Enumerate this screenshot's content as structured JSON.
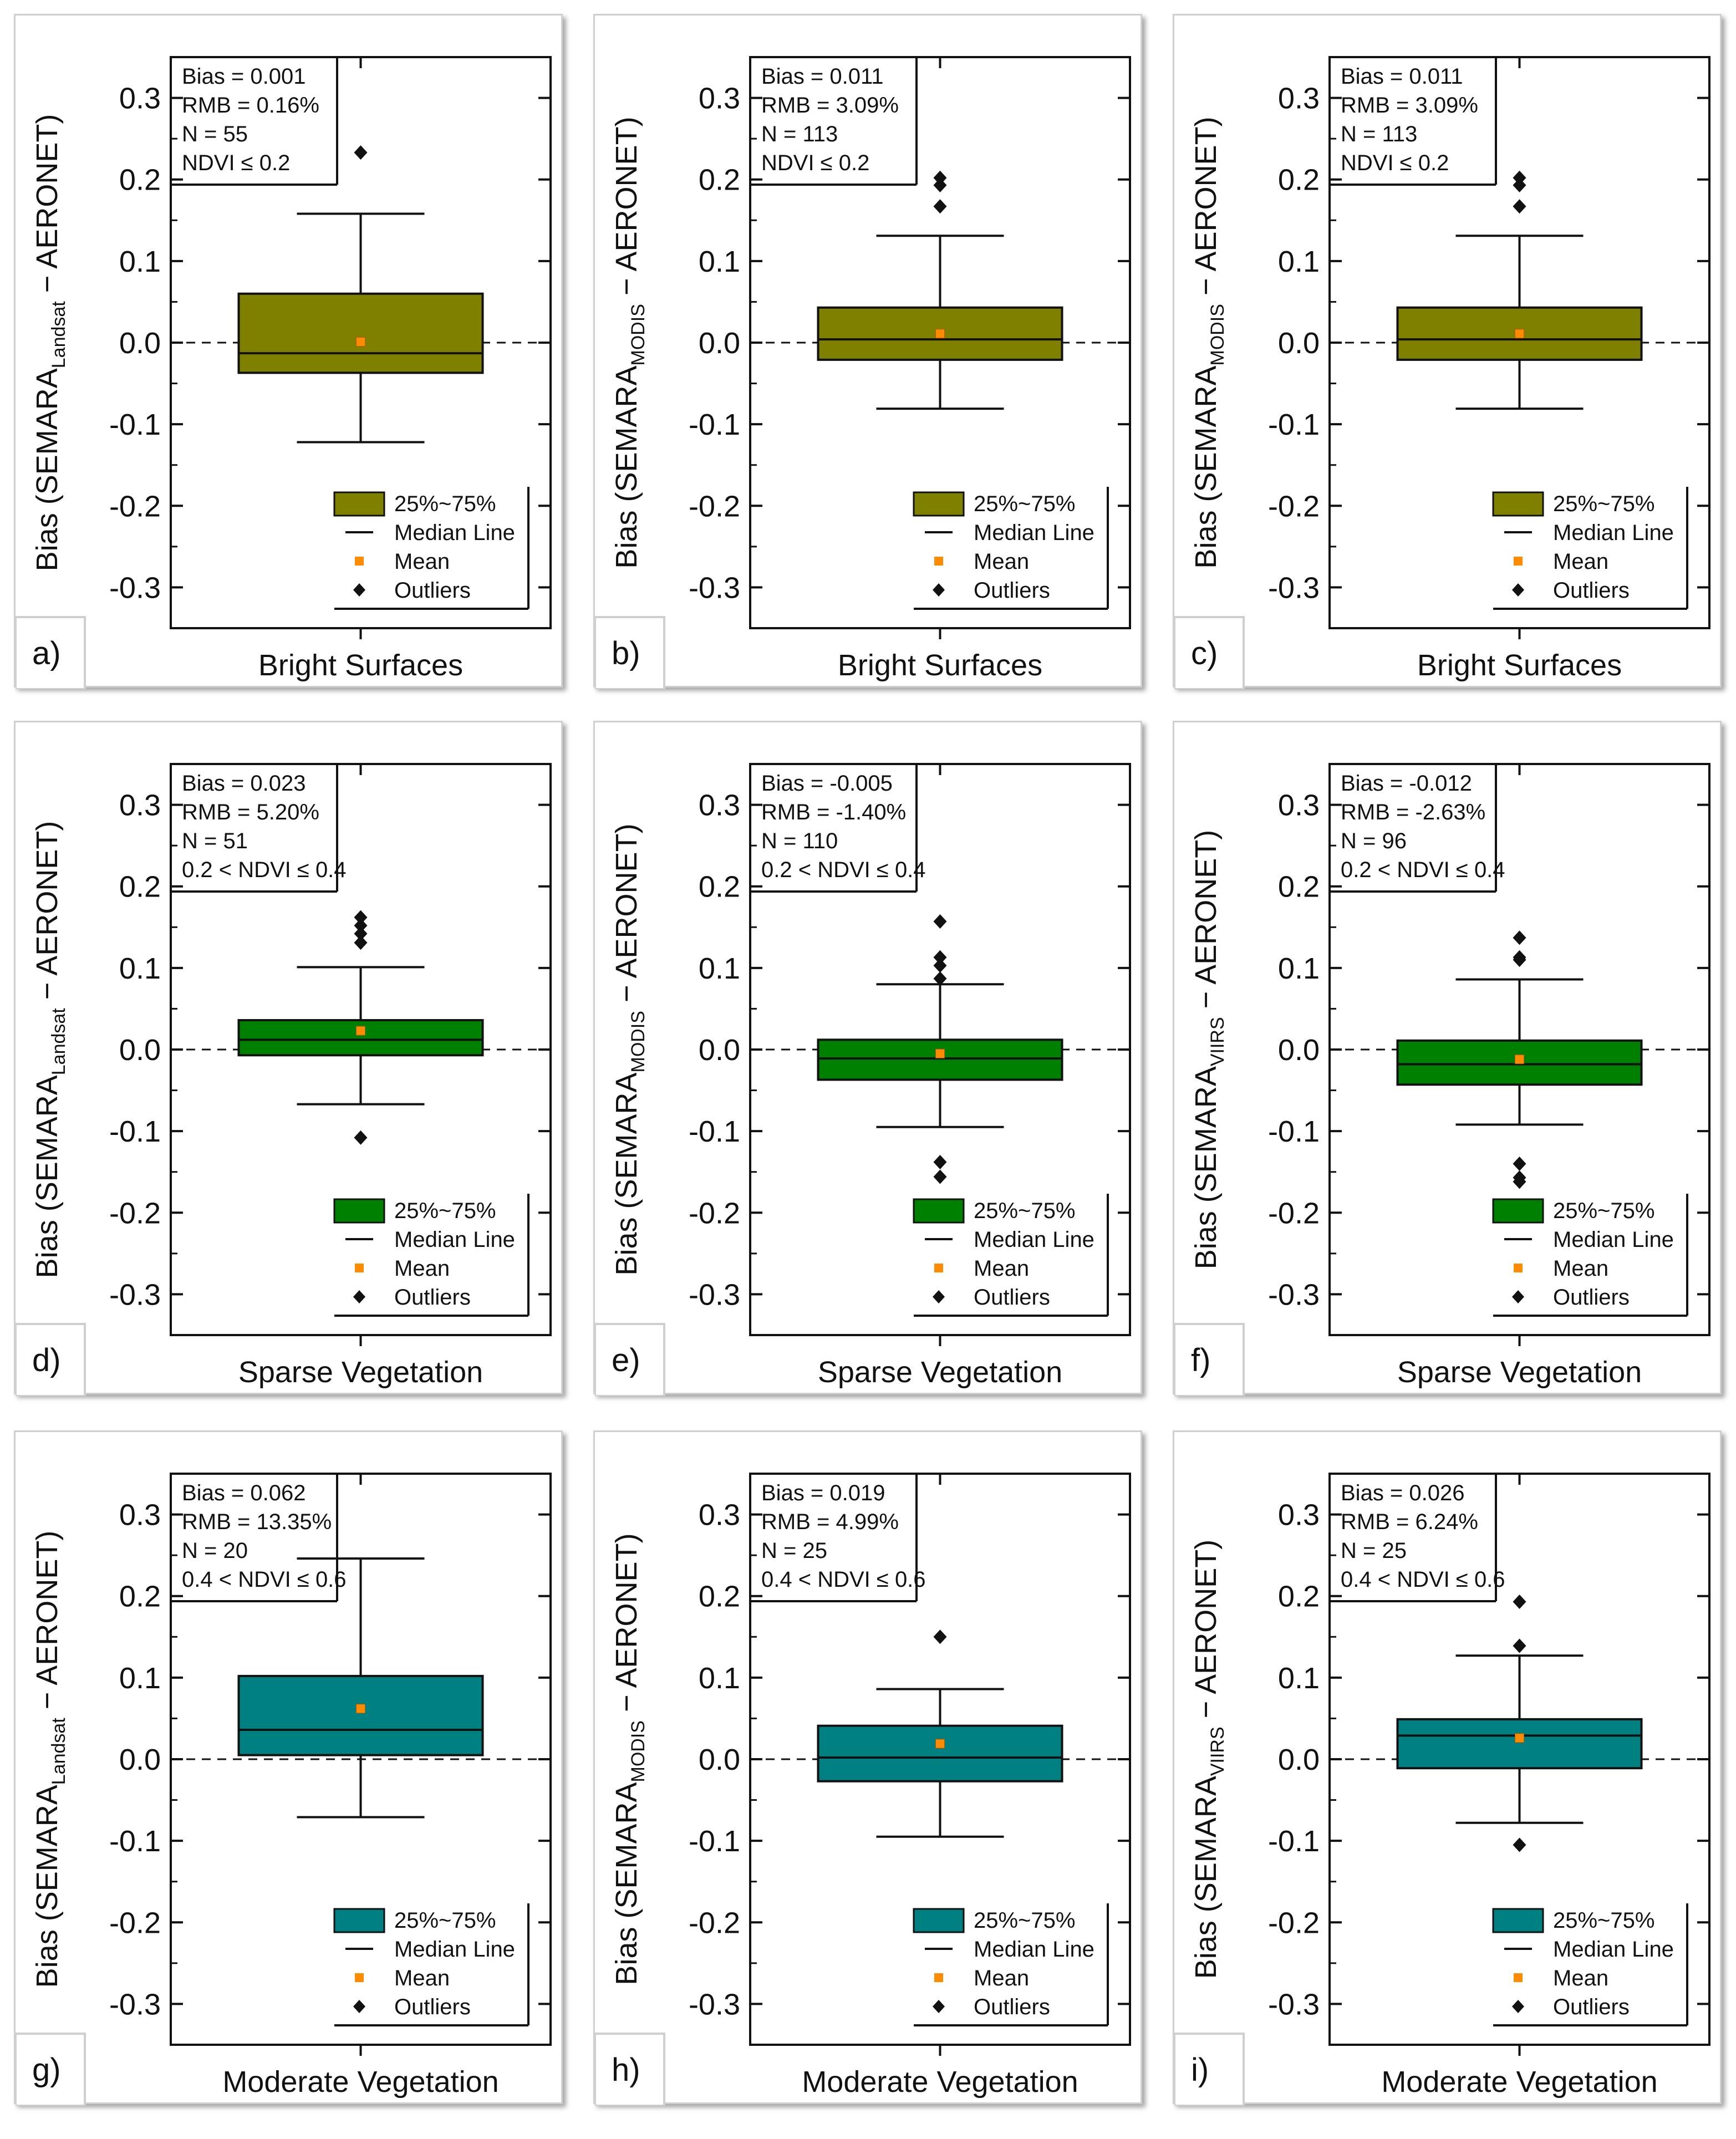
{
  "figure": {
    "legend": {
      "box_label": "25%~75%",
      "median_label": "Median Line",
      "mean_label": "Mean",
      "outlier_label": "Outliers"
    },
    "colors": {
      "bright": "#808000",
      "sparse": "#008000",
      "moderate": "#008080",
      "mean_marker": "#ff8c00",
      "axis": "#111111"
    }
  },
  "chart_data": [
    {
      "type": "box",
      "panel_label": "a)",
      "category": "Bright Surfaces",
      "ylabel_main": "Bias (SEMARA",
      "ylabel_sub": "Landsat",
      "ylabel_tail": " − AERONET)",
      "ylim": [
        -0.35,
        0.35
      ],
      "yticks": [
        "0.3",
        "0.2",
        "0.1",
        "0.0",
        "-0.1",
        "-0.2",
        "-0.3"
      ],
      "ytick_values": [
        0.3,
        0.2,
        0.1,
        0.0,
        -0.1,
        -0.2,
        -0.3
      ],
      "stats": [
        "Bias = 0.001",
        "RMB = 0.16%",
        "N = 55",
        "NDVI ≤ 0.2"
      ],
      "box": {
        "q1": -0.037,
        "median": -0.013,
        "q3": 0.06,
        "whisker_low": -0.122,
        "whisker_high": 0.158,
        "mean": 0.001
      },
      "outliers": [
        0.233
      ],
      "fill_key": "bright"
    },
    {
      "type": "box",
      "panel_label": "b)",
      "category": "Bright Surfaces",
      "ylabel_main": "Bias (SEMARA",
      "ylabel_sub": "MODIS",
      "ylabel_tail": " − AERONET)",
      "ylim": [
        -0.35,
        0.35
      ],
      "yticks": [
        "0.3",
        "0.2",
        "0.1",
        "0.0",
        "-0.1",
        "-0.2",
        "-0.3"
      ],
      "ytick_values": [
        0.3,
        0.2,
        0.1,
        0.0,
        -0.1,
        -0.2,
        -0.3
      ],
      "stats": [
        "Bias = 0.011",
        "RMB = 3.09%",
        "N = 113",
        "NDVI ≤ 0.2"
      ],
      "box": {
        "q1": -0.021,
        "median": 0.004,
        "q3": 0.043,
        "whisker_low": -0.081,
        "whisker_high": 0.131,
        "mean": 0.011
      },
      "outliers": [
        0.202,
        0.193,
        0.167
      ],
      "fill_key": "bright"
    },
    {
      "type": "box",
      "panel_label": "c)",
      "category": "Bright Surfaces",
      "ylabel_main": "Bias (SEMARA",
      "ylabel_sub": "MODIS",
      "ylabel_tail": " − AERONET)",
      "ylim": [
        -0.35,
        0.35
      ],
      "yticks": [
        "0.3",
        "0.2",
        "0.1",
        "0.0",
        "-0.1",
        "-0.2",
        "-0.3"
      ],
      "ytick_values": [
        0.3,
        0.2,
        0.1,
        0.0,
        -0.1,
        -0.2,
        -0.3
      ],
      "stats": [
        "Bias = 0.011",
        "RMB = 3.09%",
        "N = 113",
        "NDVI ≤ 0.2"
      ],
      "box": {
        "q1": -0.021,
        "median": 0.004,
        "q3": 0.043,
        "whisker_low": -0.081,
        "whisker_high": 0.131,
        "mean": 0.011
      },
      "outliers": [
        0.202,
        0.193,
        0.167
      ],
      "fill_key": "bright"
    },
    {
      "type": "box",
      "panel_label": "d)",
      "category": "Sparse Vegetation",
      "ylabel_main": "Bias (SEMARA",
      "ylabel_sub": "Landsat",
      "ylabel_tail": " − AERONET)",
      "ylim": [
        -0.35,
        0.35
      ],
      "yticks": [
        "0.3",
        "0.2",
        "0.1",
        "0.0",
        "-0.1",
        "-0.2",
        "-0.3"
      ],
      "ytick_values": [
        0.3,
        0.2,
        0.1,
        0.0,
        -0.1,
        -0.2,
        -0.3
      ],
      "stats": [
        "Bias = 0.023",
        "RMB = 5.20%",
        "N = 51",
        "0.2 < NDVI ≤ 0.4"
      ],
      "box": {
        "q1": -0.007,
        "median": 0.012,
        "q3": 0.036,
        "whisker_low": -0.067,
        "whisker_high": 0.101,
        "mean": 0.023
      },
      "outliers": [
        0.162,
        0.152,
        0.142,
        0.131,
        -0.108
      ],
      "fill_key": "sparse"
    },
    {
      "type": "box",
      "panel_label": "e)",
      "category": "Sparse Vegetation",
      "ylabel_main": "Bias (SEMARA",
      "ylabel_sub": "MODIS",
      "ylabel_tail": " − AERONET)",
      "ylim": [
        -0.35,
        0.35
      ],
      "yticks": [
        "0.3",
        "0.2",
        "0.1",
        "0.0",
        "-0.1",
        "-0.2",
        "-0.3"
      ],
      "ytick_values": [
        0.3,
        0.2,
        0.1,
        0.0,
        -0.1,
        -0.2,
        -0.3
      ],
      "stats": [
        "Bias = -0.005",
        "RMB = -1.40%",
        "N = 110",
        "0.2 < NDVI ≤ 0.4"
      ],
      "box": {
        "q1": -0.037,
        "median": -0.011,
        "q3": 0.012,
        "whisker_low": -0.095,
        "whisker_high": 0.08,
        "mean": -0.005
      },
      "outliers": [
        0.157,
        0.113,
        0.103,
        0.087,
        -0.138,
        -0.156
      ],
      "fill_key": "sparse"
    },
    {
      "type": "box",
      "panel_label": "f)",
      "category": "Sparse Vegetation",
      "ylabel_main": "Bias (SEMARA",
      "ylabel_sub": "VIIRS",
      "ylabel_tail": " − AERONET)",
      "ylim": [
        -0.35,
        0.35
      ],
      "yticks": [
        "0.3",
        "0.2",
        "0.1",
        "0.0",
        "-0.1",
        "-0.2",
        "-0.3"
      ],
      "ytick_values": [
        0.3,
        0.2,
        0.1,
        0.0,
        -0.1,
        -0.2,
        -0.3
      ],
      "stats": [
        "Bias = -0.012",
        "RMB = -2.63%",
        "N = 96",
        "0.2 < NDVI ≤ 0.4"
      ],
      "box": {
        "q1": -0.043,
        "median": -0.018,
        "q3": 0.011,
        "whisker_low": -0.092,
        "whisker_high": 0.086,
        "mean": -0.012
      },
      "outliers": [
        0.137,
        0.113,
        0.11,
        -0.14,
        -0.157,
        -0.162
      ],
      "fill_key": "sparse"
    },
    {
      "type": "box",
      "panel_label": "g)",
      "category": "Moderate Vegetation",
      "ylabel_main": "Bias (SEMARA",
      "ylabel_sub": "Landsat",
      "ylabel_tail": " − AERONET)",
      "ylim": [
        -0.35,
        0.35
      ],
      "yticks": [
        "0.3",
        "0.2",
        "0.1",
        "0.0",
        "-0.1",
        "-0.2",
        "-0.3"
      ],
      "ytick_values": [
        0.3,
        0.2,
        0.1,
        0.0,
        -0.1,
        -0.2,
        -0.3
      ],
      "stats": [
        "Bias = 0.062",
        "RMB = 13.35%",
        "N = 20",
        "0.4 < NDVI ≤ 0.6"
      ],
      "box": {
        "q1": 0.005,
        "median": 0.036,
        "q3": 0.102,
        "whisker_low": -0.071,
        "whisker_high": 0.246,
        "mean": 0.062
      },
      "outliers": [],
      "fill_key": "moderate"
    },
    {
      "type": "box",
      "panel_label": "h)",
      "category": "Moderate Vegetation",
      "ylabel_main": "Bias (SEMARA",
      "ylabel_sub": "MODIS",
      "ylabel_tail": " − AERONET)",
      "ylim": [
        -0.35,
        0.35
      ],
      "yticks": [
        "0.3",
        "0.2",
        "0.1",
        "0.0",
        "-0.1",
        "-0.2",
        "-0.3"
      ],
      "ytick_values": [
        0.3,
        0.2,
        0.1,
        0.0,
        -0.1,
        -0.2,
        -0.3
      ],
      "stats": [
        "Bias = 0.019",
        "RMB = 4.99%",
        "N = 25",
        "0.4 < NDVI ≤ 0.6"
      ],
      "box": {
        "q1": -0.027,
        "median": 0.002,
        "q3": 0.041,
        "whisker_low": -0.095,
        "whisker_high": 0.086,
        "mean": 0.019
      },
      "outliers": [
        0.15
      ],
      "fill_key": "moderate"
    },
    {
      "type": "box",
      "panel_label": "i)",
      "category": "Moderate Vegetation",
      "ylabel_main": "Bias (SEMARA",
      "ylabel_sub": "VIIRS",
      "ylabel_tail": " − AERONET)",
      "ylim": [
        -0.35,
        0.35
      ],
      "yticks": [
        "0.3",
        "0.2",
        "0.1",
        "0.0",
        "-0.1",
        "-0.2",
        "-0.3"
      ],
      "ytick_values": [
        0.3,
        0.2,
        0.1,
        0.0,
        -0.1,
        -0.2,
        -0.3
      ],
      "stats": [
        "Bias = 0.026",
        "RMB = 6.24%",
        "N = 25",
        "0.4 < NDVI ≤ 0.6"
      ],
      "box": {
        "q1": -0.011,
        "median": 0.029,
        "q3": 0.049,
        "whisker_low": -0.078,
        "whisker_high": 0.127,
        "mean": 0.026
      },
      "outliers": [
        0.193,
        0.139,
        -0.105
      ],
      "fill_key": "moderate"
    }
  ]
}
